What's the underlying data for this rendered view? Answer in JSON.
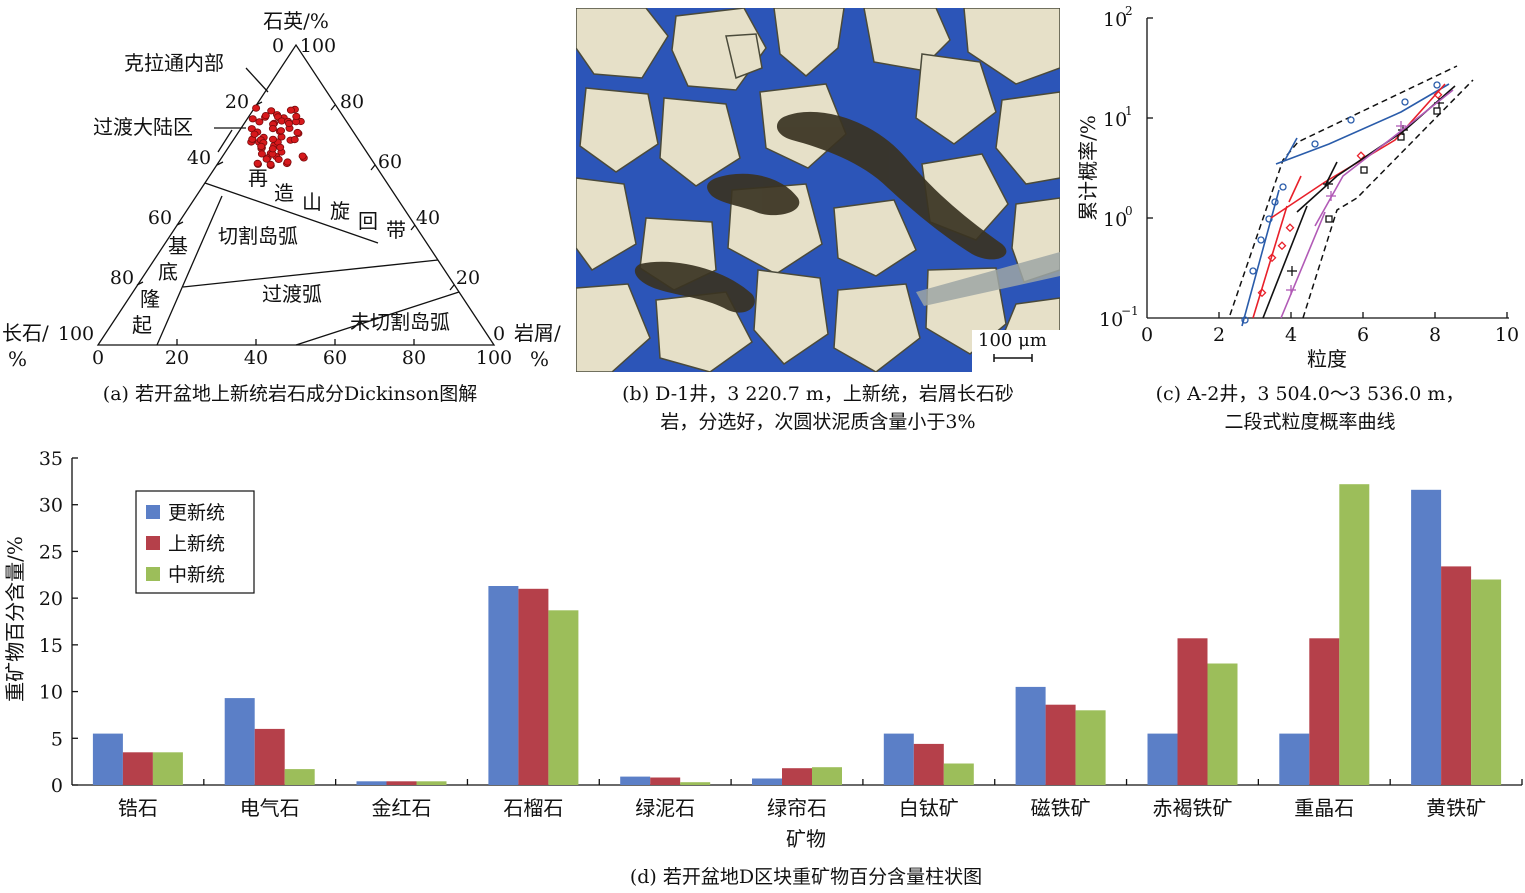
{
  "panel_a": {
    "apex_label": "石英/%",
    "left_label_line1": "长石/",
    "left_label_line2": "%",
    "right_label_line1": "岩屑/",
    "right_label_line2": "%",
    "bottom_ticks": [
      "0",
      "20",
      "40",
      "60",
      "80",
      "100"
    ],
    "left_ticks": [
      "80",
      "60",
      "40",
      "20"
    ],
    "right_ticks": [
      "80",
      "60",
      "40",
      "20"
    ],
    "apex_tick_left": "0",
    "apex_tick_right": "100",
    "left_corner_tick": "100",
    "right_corner_tick": "0",
    "fields": {
      "craton_interior": "克拉通内部",
      "transitional_continental": "过渡大陆区",
      "recycled_orogen": [
        "再",
        "造",
        "山",
        "旋",
        "回",
        "带"
      ],
      "basement_uplift": [
        "基",
        "底",
        "隆",
        "起"
      ],
      "dissected_arc": "切割岛弧",
      "transitional_arc": "过渡弧",
      "undissected_arc": "未切割岛弧"
    },
    "point_color": "#d7191c",
    "caption": "(a) 若开盆地上新统岩石成分Dickinson图解"
  },
  "panel_b": {
    "scale_bar_label": "100 μm",
    "caption_line1": "(b) D-1井，3 220.7 m，上新统，岩屑长石砂",
    "caption_line2": "岩，分选好，次圆状泥质含量小于3%"
  },
  "panel_c": {
    "y_label": "累计概率/%",
    "x_label": "粒度",
    "x_ticks": [
      "0",
      "2",
      "4",
      "6",
      "8",
      "10"
    ],
    "y_ticks": [
      {
        "base": "10",
        "exp": "2"
      },
      {
        "base": "10",
        "exp": "1"
      },
      {
        "base": "10",
        "exp": "0"
      },
      {
        "base": "10",
        "exp": "−1"
      }
    ],
    "caption_line1": "(c) A-2井，3 504.0～3 536.0 m，",
    "caption_line2": "二段式粒度概率曲线",
    "colors": {
      "blue": "#2a5caa",
      "red": "#e8202a",
      "black": "#111111",
      "purple": "#b15ab6",
      "envelope": "#111111"
    }
  },
  "panel_d": {
    "caption": "(d) 若开盆地D区块重矿物百分含量柱状图"
  },
  "chart_data": {
    "type": "bar",
    "title": "",
    "xlabel": "矿物",
    "ylabel": "重矿物百分含量/%",
    "ylim": [
      0,
      35
    ],
    "yticks": [
      "0",
      "5",
      "10",
      "15",
      "20",
      "25",
      "30",
      "35"
    ],
    "grid": false,
    "legend_position": "top-left",
    "categories": [
      "锆石",
      "电气石",
      "金红石",
      "石榴石",
      "绿泥石",
      "绿帘石",
      "白钛矿",
      "磁铁矿",
      "赤褐铁矿",
      "重晶石",
      "黄铁矿"
    ],
    "series": [
      {
        "name": "更新统",
        "color": "#5b7fc7",
        "values": [
          5.5,
          9.3,
          0.4,
          21.3,
          0.9,
          0.7,
          5.5,
          10.5,
          5.5,
          5.5,
          31.6
        ]
      },
      {
        "name": "上新统",
        "color": "#b5404a",
        "values": [
          3.5,
          6.0,
          0.4,
          21.0,
          0.8,
          1.8,
          4.4,
          8.6,
          15.7,
          15.7,
          23.4
        ]
      },
      {
        "name": "中新统",
        "color": "#9cbe5a",
        "values": [
          3.5,
          1.7,
          0.4,
          18.7,
          0.3,
          1.9,
          2.3,
          8.0,
          13.0,
          32.2,
          22.0
        ]
      }
    ]
  }
}
